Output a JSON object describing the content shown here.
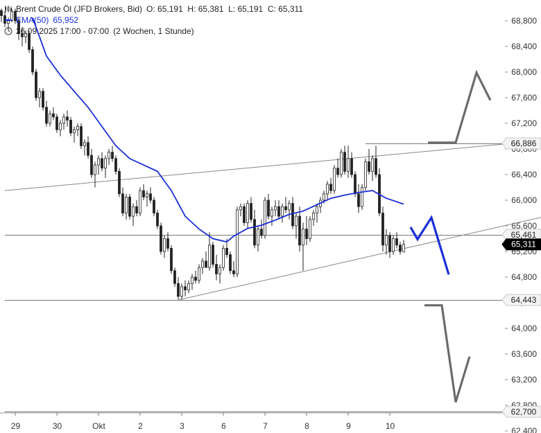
{
  "legend": {
    "instrument": "Brent Crude Öl (JFD Brokers, Bid)",
    "ohlc": "O: 65,191  H: 65,381  L: 65,191  C: 65,311",
    "ema_label": "EMA(50)",
    "ema_value": "65,952",
    "period": "26.09.2025 17:00 - 07:00",
    "range": "(2 Wochen, 1 Stunde)"
  },
  "chart_data": {
    "type": "candlestick",
    "interval": "1 Stunde",
    "ylim": [
      62400,
      68990
    ],
    "y_ticks": [
      68800,
      68400,
      68000,
      67600,
      67200,
      66800,
      66400,
      66000,
      65600,
      65200,
      64800,
      64400,
      64000,
      63600,
      63200,
      62800,
      62400
    ],
    "y_tick_labels": [
      "68,800",
      "68,400",
      "68,000",
      "67,600",
      "67,200",
      "66,800",
      "66,400",
      "66,000",
      "65,600",
      "65,200",
      "64,800",
      "64,400",
      "64,000",
      "63,600",
      "63,200",
      "62,800",
      "62,400"
    ],
    "x_ticks": [
      {
        "label": "29",
        "slot": 1
      },
      {
        "label": "30",
        "slot": 13
      },
      {
        "label": "Okt",
        "slot": 25
      },
      {
        "label": "2",
        "slot": 37
      },
      {
        "label": "3",
        "slot": 49
      },
      {
        "label": "6",
        "slot": 61
      },
      {
        "label": "7",
        "slot": 73
      },
      {
        "label": "8",
        "slot": 85
      },
      {
        "label": "9",
        "slot": 97
      },
      {
        "label": "10",
        "slot": 109
      }
    ],
    "price_tags": [
      {
        "label": "66,886",
        "value": 66886,
        "style": "plain"
      },
      {
        "label": "65,461",
        "value": 65461,
        "style": "plain"
      },
      {
        "label": "65,311",
        "value": 65311,
        "style": "current"
      },
      {
        "label": "64,443",
        "value": 64443,
        "style": "plain"
      },
      {
        "label": "62,700",
        "value": 62700,
        "style": "plain"
      }
    ],
    "horizontal_lines": [
      {
        "value": 65461,
        "from_slot": -2
      },
      {
        "value": 64443,
        "from_slot": -2
      },
      {
        "value": 62700,
        "from_slot": -2
      },
      {
        "value": 66886,
        "from_slot": 102
      }
    ],
    "trendlines": [
      {
        "from": [
          -2,
          66150
        ],
        "to": [
          144,
          66886
        ]
      },
      {
        "from": [
          48,
          64443
        ],
        "to": [
          154,
          65750
        ]
      }
    ],
    "ema": {
      "name": "EMA(50)",
      "color": "#1a2ed8",
      "points": [
        [
          6,
          68850
        ],
        [
          10,
          68250
        ],
        [
          14,
          67950
        ],
        [
          18,
          67700
        ],
        [
          22,
          67450
        ],
        [
          26,
          67150
        ],
        [
          30,
          66850
        ],
        [
          34,
          66650
        ],
        [
          38,
          66550
        ],
        [
          42,
          66450
        ],
        [
          46,
          66150
        ],
        [
          50,
          65750
        ],
        [
          54,
          65550
        ],
        [
          58,
          65400
        ],
        [
          62,
          65350
        ],
        [
          64,
          65440
        ],
        [
          68,
          65560
        ],
        [
          72,
          65610
        ],
        [
          76,
          65690
        ],
        [
          80,
          65780
        ],
        [
          84,
          65830
        ],
        [
          88,
          65930
        ],
        [
          92,
          66030
        ],
        [
          96,
          66080
        ],
        [
          100,
          66120
        ],
        [
          104,
          66150
        ],
        [
          108,
          66030
        ],
        [
          113,
          65940
        ]
      ]
    },
    "scenarios": [
      {
        "color": "#1a2ed8",
        "points": [
          [
            115,
            65580
          ],
          [
            117,
            65390
          ],
          [
            121,
            65730
          ],
          [
            126,
            64840
          ]
        ]
      },
      {
        "color": "#6b6b6b",
        "points": [
          [
            120,
            66900
          ],
          [
            128,
            66900
          ],
          [
            134,
            67990
          ],
          [
            138,
            67560
          ]
        ]
      },
      {
        "color": "#6b6b6b",
        "points": [
          [
            119,
            64360
          ],
          [
            124,
            64360
          ],
          [
            128,
            62850
          ],
          [
            132,
            63560
          ]
        ]
      }
    ],
    "candles": [
      [
        -3,
        68960,
        68990,
        68780,
        68880
      ],
      [
        -2,
        68880,
        68950,
        68700,
        68760
      ],
      [
        -1,
        68760,
        68850,
        68650,
        68800
      ],
      [
        0,
        68800,
        68990,
        68780,
        68950
      ],
      [
        1,
        68950,
        68990,
        68750,
        68800
      ],
      [
        2,
        68800,
        68860,
        68500,
        68600
      ],
      [
        3,
        68600,
        68700,
        68400,
        68550
      ],
      [
        4,
        68550,
        68650,
        68450,
        68600
      ],
      [
        5,
        68600,
        68650,
        68300,
        68350
      ],
      [
        6,
        68350,
        68400,
        67950,
        68000
      ],
      [
        7,
        68000,
        68050,
        67550,
        67600
      ],
      [
        8,
        67600,
        67750,
        67450,
        67700
      ],
      [
        9,
        67700,
        67750,
        67400,
        67450
      ],
      [
        10,
        67450,
        67550,
        67150,
        67200
      ],
      [
        11,
        67200,
        67400,
        67150,
        67350
      ],
      [
        12,
        67350,
        67450,
        67250,
        67300
      ],
      [
        13,
        67300,
        67350,
        67050,
        67100
      ],
      [
        14,
        67100,
        67250,
        67000,
        67200
      ],
      [
        15,
        67200,
        67350,
        67100,
        67300
      ],
      [
        16,
        67300,
        67400,
        67150,
        67250
      ],
      [
        17,
        67250,
        67300,
        67000,
        67050
      ],
      [
        18,
        67050,
        67150,
        66900,
        67100
      ],
      [
        19,
        67100,
        67200,
        67000,
        67150
      ],
      [
        20,
        67150,
        67200,
        66800,
        66850
      ],
      [
        21,
        66850,
        66950,
        66700,
        66900
      ],
      [
        22,
        66900,
        67000,
        66650,
        66700
      ],
      [
        23,
        66700,
        66800,
        66350,
        66400
      ],
      [
        24,
        66400,
        66600,
        66200,
        66550
      ],
      [
        25,
        66550,
        66700,
        66400,
        66650
      ],
      [
        26,
        66650,
        66750,
        66450,
        66500
      ],
      [
        27,
        66500,
        66700,
        66350,
        66650
      ],
      [
        28,
        66650,
        66800,
        66550,
        66750
      ],
      [
        29,
        66750,
        66850,
        66600,
        66650
      ],
      [
        30,
        66650,
        66700,
        66400,
        66450
      ],
      [
        31,
        66450,
        66500,
        66050,
        66100
      ],
      [
        32,
        66100,
        66200,
        65750,
        65800
      ],
      [
        33,
        65800,
        66100,
        65700,
        66050
      ],
      [
        34,
        66050,
        66100,
        65700,
        65750
      ],
      [
        35,
        65750,
        65950,
        65600,
        65900
      ],
      [
        36,
        65900,
        66000,
        65750,
        65800
      ],
      [
        37,
        65800,
        66200,
        65750,
        66150
      ],
      [
        38,
        66150,
        66250,
        66000,
        66050
      ],
      [
        39,
        66050,
        66150,
        65900,
        66100
      ],
      [
        40,
        66100,
        66200,
        65950,
        66000
      ],
      [
        41,
        66000,
        66050,
        65750,
        65800
      ],
      [
        42,
        65800,
        65850,
        65550,
        65600
      ],
      [
        43,
        65600,
        65650,
        65150,
        65200
      ],
      [
        44,
        65200,
        65450,
        65100,
        65400
      ],
      [
        45,
        65400,
        65500,
        65200,
        65250
      ],
      [
        46,
        65250,
        65300,
        64850,
        64900
      ],
      [
        47,
        64900,
        64950,
        64650,
        64700
      ],
      [
        48,
        64700,
        64800,
        64450,
        64500
      ],
      [
        49,
        64500,
        64700,
        64450,
        64650
      ],
      [
        50,
        64650,
        64750,
        64500,
        64600
      ],
      [
        51,
        64600,
        64750,
        64550,
        64700
      ],
      [
        52,
        64700,
        64850,
        64600,
        64800
      ],
      [
        53,
        64800,
        64900,
        64700,
        64750
      ],
      [
        54,
        64750,
        65000,
        64700,
        64950
      ],
      [
        55,
        64950,
        65100,
        64850,
        65050
      ],
      [
        56,
        65050,
        65200,
        64950,
        64950
      ],
      [
        57,
        64950,
        65500,
        64900,
        65300
      ],
      [
        58,
        65300,
        65350,
        64950,
        65000
      ],
      [
        59,
        65000,
        65150,
        64750,
        64850
      ],
      [
        60,
        64850,
        65000,
        64700,
        64950
      ],
      [
        61,
        64950,
        65300,
        64900,
        65250
      ],
      [
        62,
        65250,
        65400,
        65100,
        65150
      ],
      [
        63,
        65150,
        65200,
        64850,
        64900
      ],
      [
        64,
        64900,
        65050,
        64800,
        64850
      ],
      [
        65,
        64850,
        65900,
        64800,
        65850
      ],
      [
        66,
        65850,
        65950,
        65750,
        65900
      ],
      [
        67,
        65900,
        65950,
        65600,
        65650
      ],
      [
        68,
        65650,
        66000,
        65550,
        65950
      ],
      [
        69,
        65950,
        66050,
        65650,
        65700
      ],
      [
        70,
        65700,
        65850,
        65250,
        65300
      ],
      [
        71,
        65300,
        65600,
        65200,
        65550
      ],
      [
        72,
        65550,
        65700,
        65400,
        65450
      ],
      [
        73,
        65450,
        66050,
        65400,
        66000
      ],
      [
        74,
        66000,
        66100,
        65700,
        65750
      ],
      [
        75,
        65750,
        65900,
        65600,
        65850
      ],
      [
        76,
        65850,
        66000,
        65750,
        65900
      ],
      [
        77,
        65900,
        66000,
        65700,
        65750
      ],
      [
        78,
        65750,
        65950,
        65650,
        65900
      ],
      [
        79,
        65900,
        66050,
        65800,
        65850
      ],
      [
        80,
        65850,
        66000,
        65700,
        65950
      ],
      [
        81,
        65950,
        66050,
        65550,
        65600
      ],
      [
        82,
        65600,
        65800,
        65400,
        65750
      ],
      [
        83,
        65750,
        65900,
        65200,
        65300
      ],
      [
        84,
        65300,
        65650,
        64900,
        65550
      ],
      [
        85,
        65550,
        65750,
        65300,
        65400
      ],
      [
        86,
        65400,
        65750,
        65350,
        65700
      ],
      [
        87,
        65700,
        65850,
        65600,
        65800
      ],
      [
        88,
        65800,
        65950,
        65650,
        65900
      ],
      [
        89,
        65900,
        66050,
        65800,
        66000
      ],
      [
        90,
        66000,
        66150,
        65950,
        66100
      ],
      [
        91,
        66100,
        66300,
        66000,
        66250
      ],
      [
        92,
        66250,
        66350,
        66100,
        66150
      ],
      [
        93,
        66150,
        66550,
        66100,
        66500
      ],
      [
        94,
        66500,
        66650,
        66350,
        66400
      ],
      [
        95,
        66400,
        66800,
        66350,
        66750
      ],
      [
        96,
        66750,
        66850,
        66400,
        66450
      ],
      [
        97,
        66450,
        66850,
        66350,
        66650
      ],
      [
        98,
        66650,
        66750,
        66350,
        66400
      ],
      [
        99,
        66400,
        66450,
        66050,
        66100
      ],
      [
        100,
        66100,
        66250,
        65800,
        65900
      ],
      [
        101,
        65900,
        66250,
        65850,
        66200
      ],
      [
        102,
        66200,
        66650,
        66150,
        66600
      ],
      [
        103,
        66600,
        66800,
        66400,
        66450
      ],
      [
        104,
        66450,
        66700,
        66300,
        66650
      ],
      [
        105,
        66650,
        66850,
        66350,
        66400
      ],
      [
        106,
        66400,
        66500,
        65750,
        65800
      ],
      [
        107,
        65800,
        65900,
        65200,
        65300
      ],
      [
        108,
        65300,
        65550,
        65150,
        65450
      ],
      [
        109,
        65450,
        65500,
        65100,
        65200
      ],
      [
        110,
        65200,
        65450,
        65150,
        65400
      ],
      [
        111,
        65400,
        65500,
        65250,
        65300
      ],
      [
        112,
        65300,
        65350,
        65150,
        65200
      ],
      [
        113,
        65191,
        65381,
        65191,
        65311
      ]
    ]
  }
}
